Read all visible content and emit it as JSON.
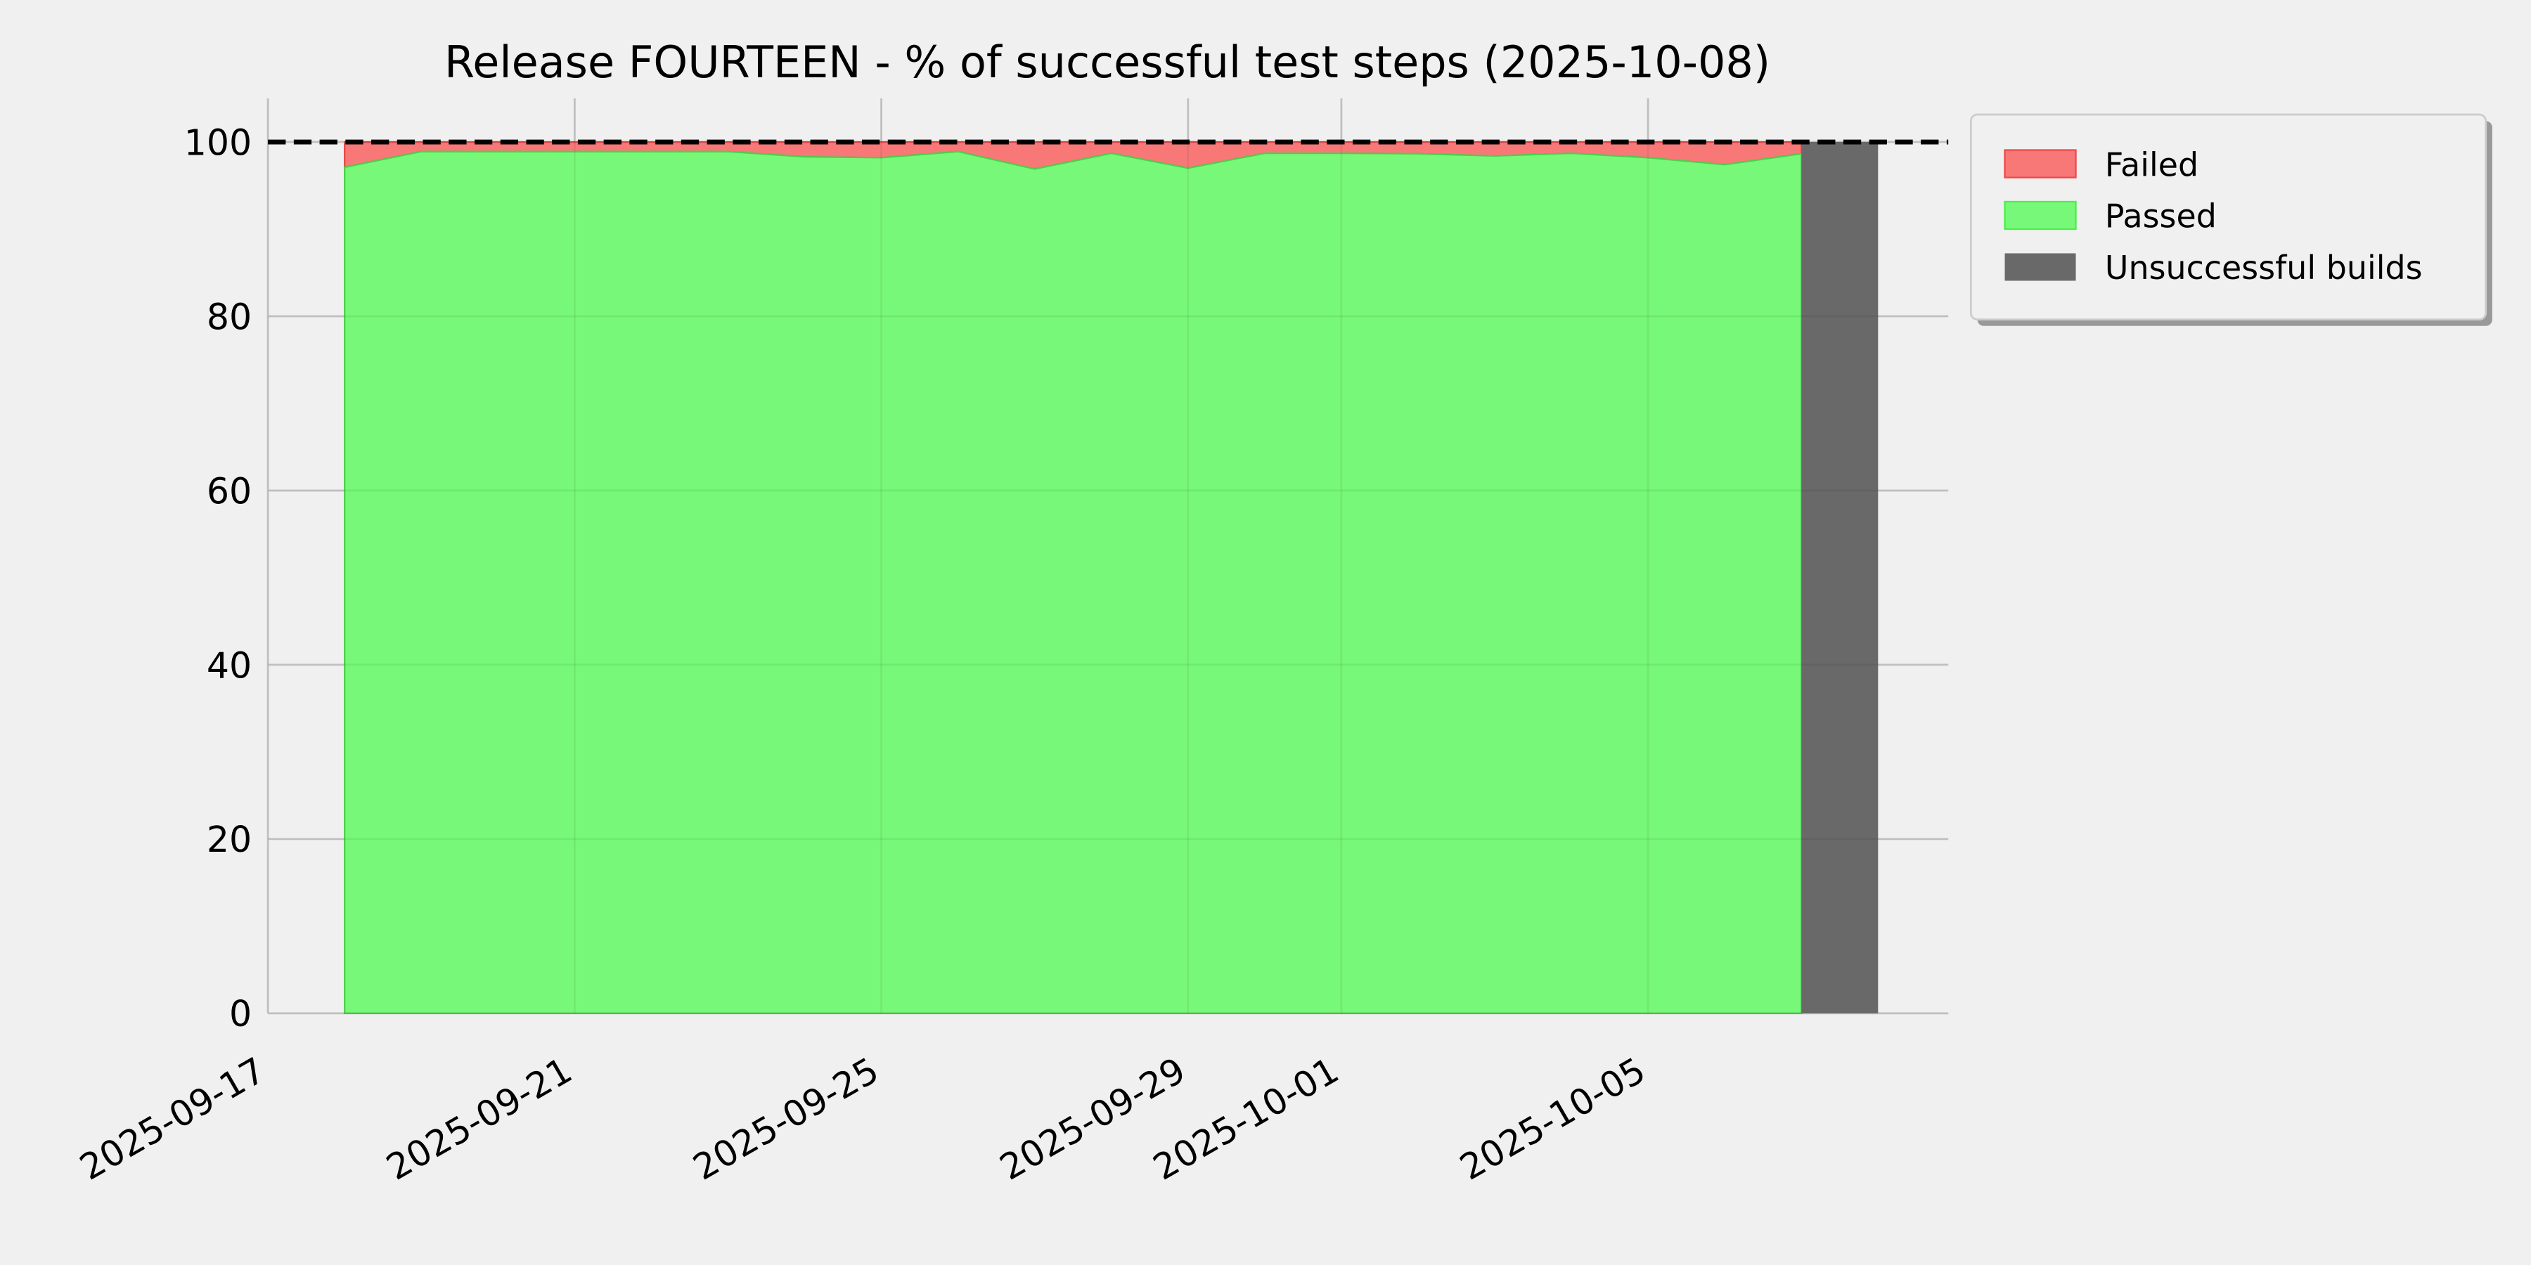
{
  "chart_data": {
    "type": "area",
    "title": "Release FOURTEEN - % of successful test steps (2025-10-08)",
    "xlabel": "",
    "ylabel": "",
    "ylim": [
      -5,
      105
    ],
    "xlim": [
      "2025-09-17",
      "2025-10-09"
    ],
    "grid": true,
    "legend_position": "outside-top-right",
    "reference_line": {
      "y": 100,
      "style": "dashed",
      "color": "#000000"
    },
    "x_ticks": [
      "2025-09-17",
      "2025-09-21",
      "2025-09-25",
      "2025-09-29",
      "2025-10-01",
      "2025-10-05"
    ],
    "y_ticks": [
      0,
      20,
      40,
      60,
      80,
      100
    ],
    "x": [
      "2025-09-18",
      "2025-09-19",
      "2025-09-20",
      "2025-09-21",
      "2025-09-22",
      "2025-09-23",
      "2025-09-24",
      "2025-09-25",
      "2025-09-26",
      "2025-09-27",
      "2025-09-28",
      "2025-09-29",
      "2025-09-30",
      "2025-10-01",
      "2025-10-02",
      "2025-10-03",
      "2025-10-04",
      "2025-10-05",
      "2025-10-06",
      "2025-10-07"
    ],
    "series": [
      {
        "name": "Failed",
        "color": "#f87878",
        "values": [
          2.9,
          1.1,
          1.1,
          1.1,
          1.1,
          1.1,
          1.7,
          1.8,
          1.1,
          3.1,
          1.3,
          3.0,
          1.3,
          1.3,
          1.35,
          1.6,
          1.3,
          1.8,
          2.6,
          1.35
        ]
      },
      {
        "name": "Passed",
        "color": "#78f878",
        "values": [
          97.1,
          98.9,
          98.9,
          98.9,
          98.9,
          98.9,
          98.3,
          98.2,
          98.9,
          96.9,
          98.7,
          97.0,
          98.7,
          98.7,
          98.65,
          98.4,
          98.7,
          98.2,
          97.4,
          98.65
        ]
      },
      {
        "name": "Unsuccessful builds",
        "color": "#696969",
        "spans": [
          {
            "start": "2025-10-07",
            "end": "2025-10-08",
            "value": 100
          }
        ]
      }
    ]
  }
}
